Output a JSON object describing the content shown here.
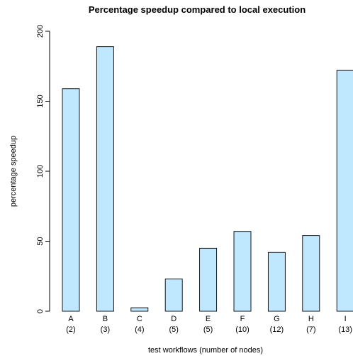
{
  "chart_data": {
    "type": "bar",
    "title": "Percentage speedup compared to local execution",
    "xlabel": "test workflows (number of nodes)",
    "ylabel": "percentage speedup",
    "ylim": [
      0,
      200
    ],
    "yticks": [
      "0",
      "50",
      "100",
      "150",
      "200"
    ],
    "categories": [
      "A",
      "B",
      "C",
      "D",
      "E",
      "F",
      "G",
      "H",
      "I"
    ],
    "subcategories": [
      "(2)",
      "(3)",
      "(4)",
      "(5)",
      "(5)",
      "(10)",
      "(12)",
      "(7)",
      "(13)"
    ],
    "values": [
      159,
      189,
      2.5,
      23,
      45,
      57,
      42,
      54,
      172
    ],
    "bar_color": "#bfe8ff",
    "grid": false,
    "legend": "none"
  }
}
